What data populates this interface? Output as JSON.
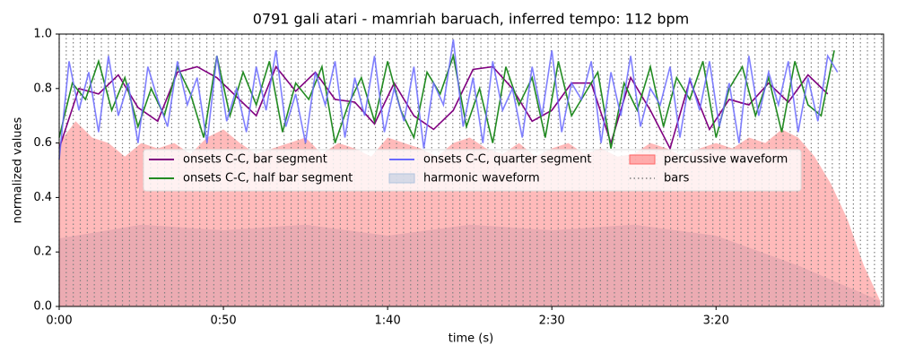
{
  "chart_data": {
    "type": "line",
    "title": "0791 gali atari - mamriah baruach, inferred tempo: 112 bpm",
    "x_label": "time (s)",
    "y_label": "normalized values",
    "xlim": [
      0,
      251
    ],
    "ylim": [
      0,
      1
    ],
    "xticks": [
      {
        "value": 0,
        "label": "0:00"
      },
      {
        "value": 50,
        "label": "0:50"
      },
      {
        "value": 100,
        "label": "1:40"
      },
      {
        "value": 150,
        "label": "2:30"
      },
      {
        "value": 200,
        "label": "3:20"
      }
    ],
    "yticks": [
      {
        "value": 0,
        "label": "0.0"
      },
      0.2,
      0.4,
      0.6,
      0.8,
      {
        "value": 1,
        "label": "1.0"
      }
    ],
    "series": [
      {
        "name": "onsets C-C, bar segment",
        "kind": "line",
        "color": "#800080",
        "x": [
          0,
          6,
          12,
          18,
          24,
          30,
          36,
          42,
          48,
          54,
          60,
          66,
          72,
          78,
          84,
          90,
          96,
          102,
          108,
          114,
          120,
          126,
          132,
          138,
          144,
          150,
          156,
          162,
          168,
          174,
          180,
          186,
          192,
          198,
          204,
          210,
          216,
          222,
          228,
          234
        ],
        "values": [
          0.58,
          0.8,
          0.78,
          0.85,
          0.73,
          0.68,
          0.86,
          0.88,
          0.84,
          0.77,
          0.7,
          0.88,
          0.79,
          0.86,
          0.76,
          0.75,
          0.67,
          0.82,
          0.7,
          0.65,
          0.72,
          0.87,
          0.88,
          0.8,
          0.68,
          0.72,
          0.82,
          0.82,
          0.6,
          0.84,
          0.72,
          0.58,
          0.83,
          0.65,
          0.76,
          0.74,
          0.82,
          0.75,
          0.85,
          0.78
        ]
      },
      {
        "name": "onsets C-C, half bar segment",
        "kind": "line",
        "color": "#228b22",
        "x": [
          0,
          4,
          8,
          12,
          16,
          20,
          24,
          28,
          32,
          36,
          40,
          44,
          48,
          52,
          56,
          60,
          64,
          68,
          72,
          76,
          80,
          84,
          88,
          92,
          96,
          100,
          104,
          108,
          112,
          116,
          120,
          124,
          128,
          132,
          136,
          140,
          144,
          148,
          152,
          156,
          160,
          164,
          168,
          172,
          176,
          180,
          184,
          188,
          192,
          196,
          200,
          204,
          208,
          212,
          216,
          220,
          224,
          228,
          232,
          236
        ],
        "values": [
          0.62,
          0.82,
          0.76,
          0.9,
          0.72,
          0.84,
          0.66,
          0.8,
          0.7,
          0.88,
          0.78,
          0.62,
          0.92,
          0.7,
          0.86,
          0.74,
          0.9,
          0.64,
          0.82,
          0.76,
          0.88,
          0.6,
          0.74,
          0.84,
          0.68,
          0.9,
          0.72,
          0.62,
          0.86,
          0.78,
          0.92,
          0.66,
          0.8,
          0.6,
          0.88,
          0.74,
          0.84,
          0.62,
          0.9,
          0.7,
          0.78,
          0.86,
          0.58,
          0.82,
          0.72,
          0.88,
          0.66,
          0.84,
          0.76,
          0.9,
          0.62,
          0.8,
          0.88,
          0.7,
          0.84,
          0.64,
          0.9,
          0.74,
          0.7,
          0.94
        ]
      },
      {
        "name": "onsets C-C, quarter segment",
        "kind": "line",
        "color": "#6a6aff",
        "x": [
          0,
          3,
          6,
          9,
          12,
          15,
          18,
          21,
          24,
          27,
          30,
          33,
          36,
          39,
          42,
          45,
          48,
          51,
          54,
          57,
          60,
          63,
          66,
          69,
          72,
          75,
          78,
          81,
          84,
          87,
          90,
          93,
          96,
          99,
          102,
          105,
          108,
          111,
          114,
          117,
          120,
          123,
          126,
          129,
          132,
          135,
          138,
          141,
          144,
          147,
          150,
          153,
          156,
          159,
          162,
          165,
          168,
          171,
          174,
          177,
          180,
          183,
          186,
          189,
          192,
          195,
          198,
          201,
          204,
          207,
          210,
          213,
          216,
          219,
          222,
          225,
          228,
          231,
          234,
          237
        ],
        "values": [
          0.54,
          0.9,
          0.72,
          0.86,
          0.64,
          0.92,
          0.7,
          0.82,
          0.6,
          0.88,
          0.76,
          0.66,
          0.9,
          0.74,
          0.84,
          0.6,
          0.92,
          0.68,
          0.8,
          0.64,
          0.88,
          0.72,
          0.94,
          0.66,
          0.78,
          0.6,
          0.86,
          0.74,
          0.9,
          0.62,
          0.84,
          0.7,
          0.92,
          0.64,
          0.8,
          0.68,
          0.88,
          0.58,
          0.82,
          0.74,
          0.98,
          0.66,
          0.84,
          0.6,
          0.9,
          0.72,
          0.8,
          0.62,
          0.88,
          0.7,
          0.94,
          0.64,
          0.82,
          0.76,
          0.9,
          0.6,
          0.86,
          0.7,
          0.92,
          0.66,
          0.8,
          0.74,
          0.88,
          0.62,
          0.84,
          0.72,
          0.9,
          0.66,
          0.82,
          0.6,
          0.92,
          0.7,
          0.86,
          0.74,
          0.9,
          0.64,
          0.84,
          0.68,
          0.92,
          0.86
        ]
      },
      {
        "name": "harmonic waveform",
        "kind": "area",
        "color": "#b0c4de",
        "x": [
          0,
          25,
          50,
          75,
          100,
          125,
          150,
          175,
          200,
          225,
          250
        ],
        "values": [
          0.25,
          0.3,
          0.28,
          0.3,
          0.26,
          0.3,
          0.28,
          0.3,
          0.26,
          0.15,
          0.02
        ]
      },
      {
        "name": "percussive waveform",
        "kind": "area",
        "color": "#ff6666",
        "x": [
          0,
          5,
          10,
          15,
          20,
          25,
          30,
          35,
          40,
          45,
          50,
          55,
          60,
          65,
          70,
          75,
          80,
          85,
          90,
          95,
          100,
          105,
          110,
          115,
          120,
          125,
          130,
          135,
          140,
          145,
          150,
          155,
          160,
          165,
          170,
          175,
          180,
          185,
          190,
          195,
          200,
          205,
          210,
          215,
          220,
          225,
          230,
          235,
          240,
          245,
          250
        ],
        "values": [
          0.6,
          0.68,
          0.62,
          0.6,
          0.55,
          0.6,
          0.58,
          0.6,
          0.56,
          0.62,
          0.65,
          0.6,
          0.56,
          0.58,
          0.6,
          0.62,
          0.56,
          0.6,
          0.58,
          0.55,
          0.62,
          0.6,
          0.58,
          0.55,
          0.6,
          0.62,
          0.58,
          0.56,
          0.6,
          0.55,
          0.58,
          0.6,
          0.56,
          0.58,
          0.55,
          0.56,
          0.6,
          0.58,
          0.55,
          0.58,
          0.6,
          0.58,
          0.62,
          0.6,
          0.65,
          0.62,
          0.55,
          0.45,
          0.32,
          0.15,
          0.02
        ]
      },
      {
        "name": "bars",
        "kind": "vlines",
        "color": "#808080",
        "x": [
          0,
          2.14,
          4.28,
          6.42,
          8.56,
          10.7,
          12.84,
          14.98,
          17.12,
          19.26,
          21.4,
          23.54,
          25.68,
          27.82,
          29.96,
          32.1,
          34.24,
          36.38,
          38.52,
          40.66,
          42.8,
          44.94,
          47.08,
          49.22,
          51.36,
          53.5,
          55.64,
          57.78,
          59.92,
          62.06,
          64.2,
          66.34,
          68.48,
          70.62,
          72.76,
          74.9,
          77.04,
          79.18,
          81.32,
          83.46,
          85.6,
          87.74,
          89.88,
          92.02,
          94.16,
          96.3,
          98.44,
          100.58,
          102.72,
          104.86,
          107,
          109.14,
          111.28,
          113.42,
          115.56,
          117.7,
          119.84,
          121.98,
          124.12,
          126.26,
          128.4,
          130.54,
          132.68,
          134.82,
          136.96,
          139.1,
          141.24,
          143.38,
          145.52,
          147.66,
          149.8,
          151.94,
          154.08,
          156.22,
          158.36,
          160.5,
          162.64,
          164.78,
          166.92,
          169.06,
          171.2,
          173.34,
          175.48,
          177.62,
          179.76,
          181.9,
          184.04,
          186.18,
          188.32,
          190.46,
          192.6,
          194.74,
          196.88,
          199.02,
          201.16,
          203.3,
          205.44,
          207.58,
          209.72,
          211.86,
          214,
          216.14,
          218.28,
          220.42,
          222.56,
          224.7,
          226.84,
          228.98,
          231.12,
          233.26,
          235.4,
          237.54,
          239.68,
          241.82,
          243.96,
          246.1,
          248.24,
          250.38
        ]
      }
    ]
  }
}
